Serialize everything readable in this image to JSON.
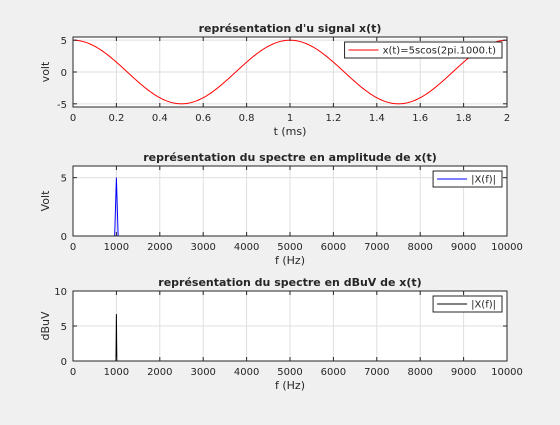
{
  "chart_data": [
    {
      "type": "line",
      "title": "représentation d'u signal x(t)",
      "xlabel": "t (ms)",
      "ylabel": "volt",
      "xlim": [
        0,
        2
      ],
      "ylim": [
        -5.5,
        5.5
      ],
      "xticks": [
        0,
        0.2,
        0.4,
        0.6,
        0.8,
        1,
        1.2,
        1.4,
        1.6,
        1.8,
        2
      ],
      "yticks": [
        -5,
        0,
        5
      ],
      "grid": true,
      "legend_position": "top-right",
      "series": [
        {
          "name": "x(t)=5scos(2pi.1000.t)",
          "color": "#ff0000",
          "function": "5*cos(2*pi*t)",
          "amplitude": 5,
          "frequency_per_ms": 1
        }
      ]
    },
    {
      "type": "line",
      "title": "représentation du spectre en amplitude de x(t)",
      "xlabel": "f (Hz)",
      "ylabel": "Volt",
      "xlim": [
        0,
        10000
      ],
      "ylim": [
        0,
        6
      ],
      "xticks": [
        0,
        1000,
        2000,
        3000,
        4000,
        5000,
        6000,
        7000,
        8000,
        9000,
        10000
      ],
      "yticks": [
        0,
        5
      ],
      "grid": true,
      "legend_position": "top-right",
      "series": [
        {
          "name": "|X(f)|",
          "color": "#0000ff",
          "x": [
            0,
            960,
            1000,
            1040,
            10000
          ],
          "y": [
            0,
            0,
            5,
            0,
            0
          ]
        }
      ]
    },
    {
      "type": "line",
      "title": "représentation du spectre en dBuV de x(t)",
      "xlabel": "f (Hz)",
      "ylabel": "dBuV",
      "xlim": [
        0,
        10000
      ],
      "ylim": [
        0,
        10
      ],
      "xticks": [
        0,
        1000,
        2000,
        3000,
        4000,
        5000,
        6000,
        7000,
        8000,
        9000,
        10000
      ],
      "yticks": [
        0,
        5,
        10
      ],
      "grid": true,
      "legend_position": "top-right",
      "series": [
        {
          "name": "|X(f)|",
          "color": "#000000",
          "x": [
            990,
            1000,
            1010
          ],
          "y": [
            0,
            6.7,
            0
          ]
        }
      ]
    }
  ]
}
